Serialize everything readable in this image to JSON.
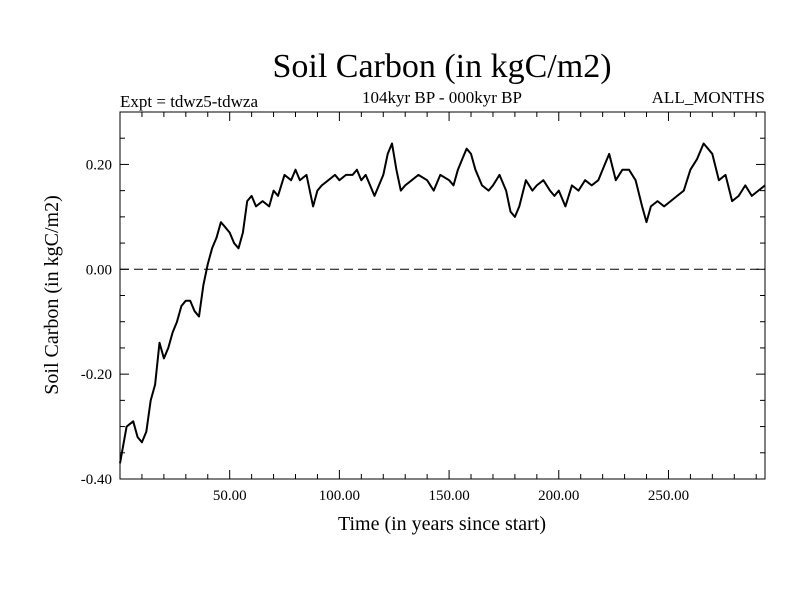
{
  "chart_data": {
    "type": "line",
    "title": "Soil Carbon (in kgC/m2)",
    "subtitle": "104kyr BP - 000kyr BP",
    "experiment_label": "Expt = tdwz5-tdwza",
    "months_label": "ALL_MONTHS",
    "xlabel": "Time (in years since start)",
    "ylabel": "Soil Carbon (in kgC/m2)",
    "xlim": [
      0,
      294
    ],
    "ylim": [
      -0.4,
      0.3
    ],
    "x_ticks": [
      50,
      100,
      150,
      200,
      250
    ],
    "x_tick_labels": [
      "50.00",
      "100.00",
      "150.00",
      "200.00",
      "250.00"
    ],
    "y_ticks": [
      -0.4,
      -0.2,
      0.0,
      0.2
    ],
    "y_tick_labels": [
      "-0.40",
      "-0.20",
      "0.00",
      "0.20"
    ],
    "reference_line": {
      "y": 0.0,
      "style": "dashed"
    },
    "series": [
      {
        "name": "Soil Carbon",
        "color": "#000000",
        "x": [
          0,
          3,
          6,
          8,
          10,
          12,
          14,
          16,
          18,
          20,
          22,
          24,
          26,
          28,
          30,
          32,
          34,
          36,
          38,
          40,
          42,
          44,
          46,
          48,
          50,
          52,
          54,
          56,
          58,
          60,
          62,
          65,
          68,
          70,
          72,
          75,
          78,
          80,
          82,
          85,
          88,
          90,
          92,
          95,
          98,
          100,
          103,
          106,
          108,
          110,
          112,
          114,
          116,
          118,
          120,
          122,
          124,
          126,
          128,
          130,
          133,
          136,
          140,
          143,
          146,
          150,
          152,
          154,
          156,
          158,
          160,
          162,
          165,
          168,
          170,
          173,
          176,
          178,
          180,
          182,
          185,
          188,
          190,
          193,
          196,
          198,
          200,
          203,
          206,
          209,
          212,
          215,
          218,
          221,
          223,
          226,
          229,
          232,
          235,
          238,
          240,
          242,
          245,
          248,
          251,
          254,
          257,
          260,
          263,
          266,
          268,
          270,
          273,
          276,
          279,
          282,
          285,
          288,
          291,
          294
        ],
        "values": [
          -0.37,
          -0.3,
          -0.29,
          -0.32,
          -0.33,
          -0.31,
          -0.25,
          -0.22,
          -0.14,
          -0.17,
          -0.15,
          -0.12,
          -0.1,
          -0.07,
          -0.06,
          -0.06,
          -0.08,
          -0.09,
          -0.03,
          0.01,
          0.04,
          0.06,
          0.09,
          0.08,
          0.07,
          0.05,
          0.04,
          0.07,
          0.13,
          0.14,
          0.12,
          0.13,
          0.12,
          0.15,
          0.14,
          0.18,
          0.17,
          0.19,
          0.17,
          0.18,
          0.12,
          0.15,
          0.16,
          0.17,
          0.18,
          0.17,
          0.18,
          0.18,
          0.19,
          0.17,
          0.18,
          0.16,
          0.14,
          0.16,
          0.18,
          0.22,
          0.24,
          0.19,
          0.15,
          0.16,
          0.17,
          0.18,
          0.17,
          0.15,
          0.18,
          0.17,
          0.16,
          0.19,
          0.21,
          0.23,
          0.22,
          0.19,
          0.16,
          0.15,
          0.16,
          0.18,
          0.15,
          0.11,
          0.1,
          0.12,
          0.17,
          0.15,
          0.16,
          0.17,
          0.15,
          0.14,
          0.15,
          0.12,
          0.16,
          0.15,
          0.17,
          0.16,
          0.17,
          0.2,
          0.22,
          0.17,
          0.19,
          0.19,
          0.17,
          0.12,
          0.09,
          0.12,
          0.13,
          0.12,
          0.13,
          0.14,
          0.15,
          0.19,
          0.21,
          0.24,
          0.23,
          0.22,
          0.17,
          0.18,
          0.13,
          0.14,
          0.16,
          0.14,
          0.15,
          0.16
        ]
      }
    ]
  }
}
